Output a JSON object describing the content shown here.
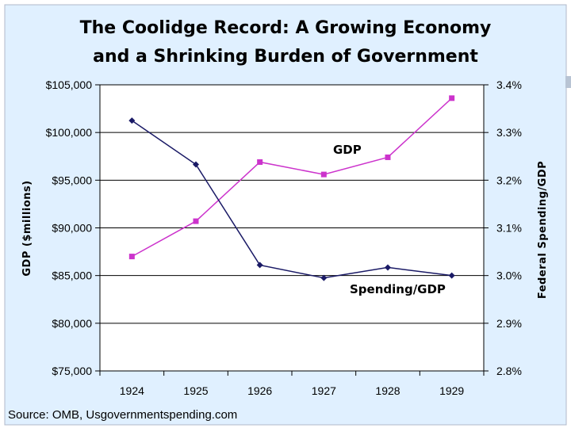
{
  "chart_data": {
    "type": "line",
    "title": "The Coolidge Record: A Growing Economy",
    "subtitle": "and a Shrinking Burden of Government",
    "categories": [
      "1924",
      "1925",
      "1926",
      "1927",
      "1928",
      "1929"
    ],
    "xlabel": "",
    "ylabel": "GDP ($millions)",
    "y2label": "Federal Spending/GDP",
    "ylim": [
      75000,
      105000
    ],
    "y2lim": [
      2.8,
      3.4
    ],
    "y_ticks": [
      "$75,000",
      "$80,000",
      "$85,000",
      "$90,000",
      "$95,000",
      "$100,000",
      "$105,000"
    ],
    "y2_ticks": [
      "2.8%",
      "2.9%",
      "3.0%",
      "3.1%",
      "3.2%",
      "3.3%",
      "3.4%"
    ],
    "grid": true,
    "series": [
      {
        "name": "GDP",
        "axis": "left",
        "color": "#CC33CC",
        "marker": "square",
        "values": [
          87000,
          90700,
          96900,
          95600,
          97400,
          103600
        ]
      },
      {
        "name": "Spending/GDP",
        "axis": "right",
        "color": "#1A1A66",
        "marker": "diamond",
        "values": [
          3.325,
          3.233,
          3.022,
          2.995,
          3.017,
          3.0
        ]
      }
    ],
    "source": "Source: OMB, Usgovernmentspending.com"
  },
  "colors": {
    "page_background": "#E0F0FF",
    "page_border": "#B0B8C8",
    "plot_background": "#FFFFFF",
    "gridline": "#000000",
    "gdp_line": "#CC33CC",
    "spending_line": "#1A1A66",
    "side_marker": "#B8C4D4"
  }
}
